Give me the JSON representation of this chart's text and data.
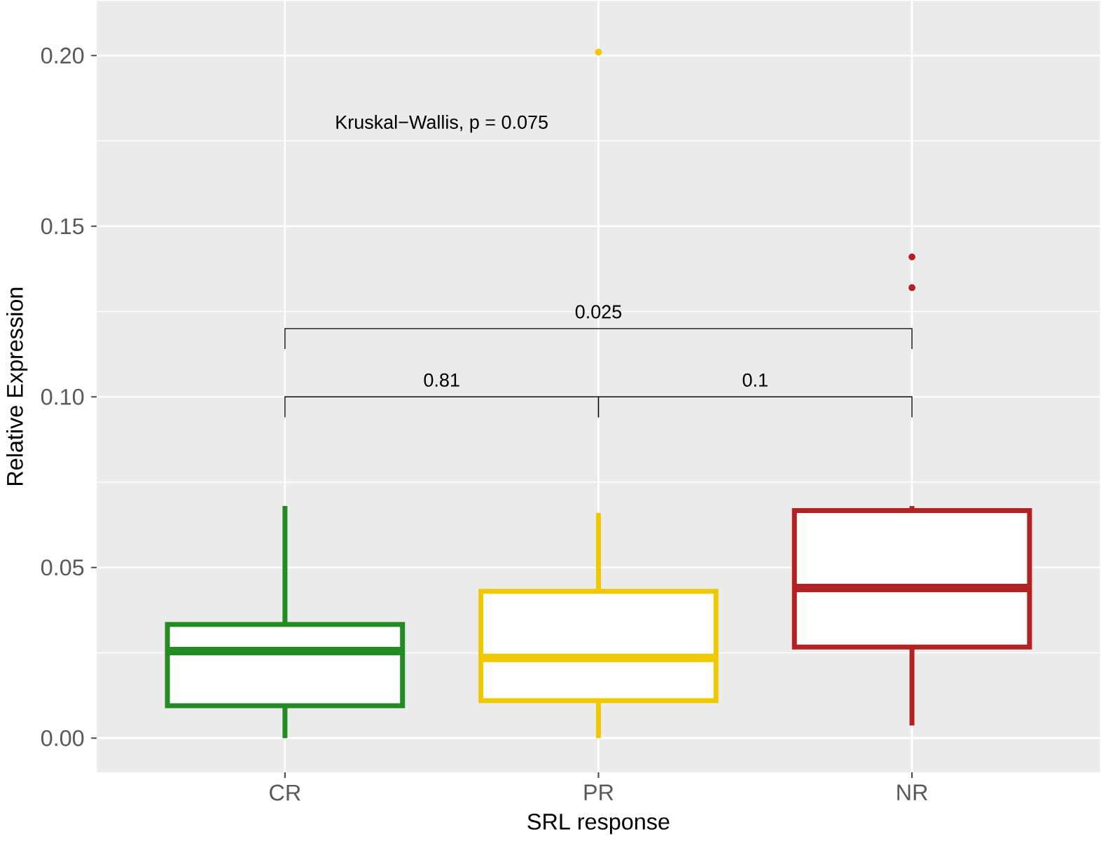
{
  "chart_data": {
    "type": "box",
    "xlabel": "SRL response",
    "ylabel": "Relative Expression",
    "categories": [
      "CR",
      "PR",
      "NR"
    ],
    "colors": [
      "#228b22",
      "#eec900",
      "#b22222"
    ],
    "boxes": [
      {
        "low": 0.0,
        "q1": 0.0095,
        "median": 0.0255,
        "q3": 0.0333,
        "high": 0.068
      },
      {
        "low": 0.0,
        "q1": 0.011,
        "median": 0.0235,
        "q3": 0.043,
        "high": 0.066,
        "outliers": [
          0.201
        ]
      },
      {
        "low": 0.0037,
        "q1": 0.0267,
        "median": 0.044,
        "q3": 0.0667,
        "high": 0.068,
        "outliers": [
          0.141,
          0.132
        ]
      }
    ],
    "annotations": [
      "Kruskal−Wallis, p = 0.075",
      "0.81",
      "0.1",
      "0.025"
    ],
    "ylim": [
      -0.01,
      0.216
    ],
    "yticks": [
      {
        "value": 0,
        "label": "0.00"
      },
      {
        "value": 0.05,
        "label": "0.05"
      },
      {
        "value": 0.1,
        "label": "0.10"
      },
      {
        "value": 0.15,
        "label": "0.15"
      },
      {
        "value": 0.2,
        "label": "0.20"
      }
    ],
    "grid": true
  }
}
